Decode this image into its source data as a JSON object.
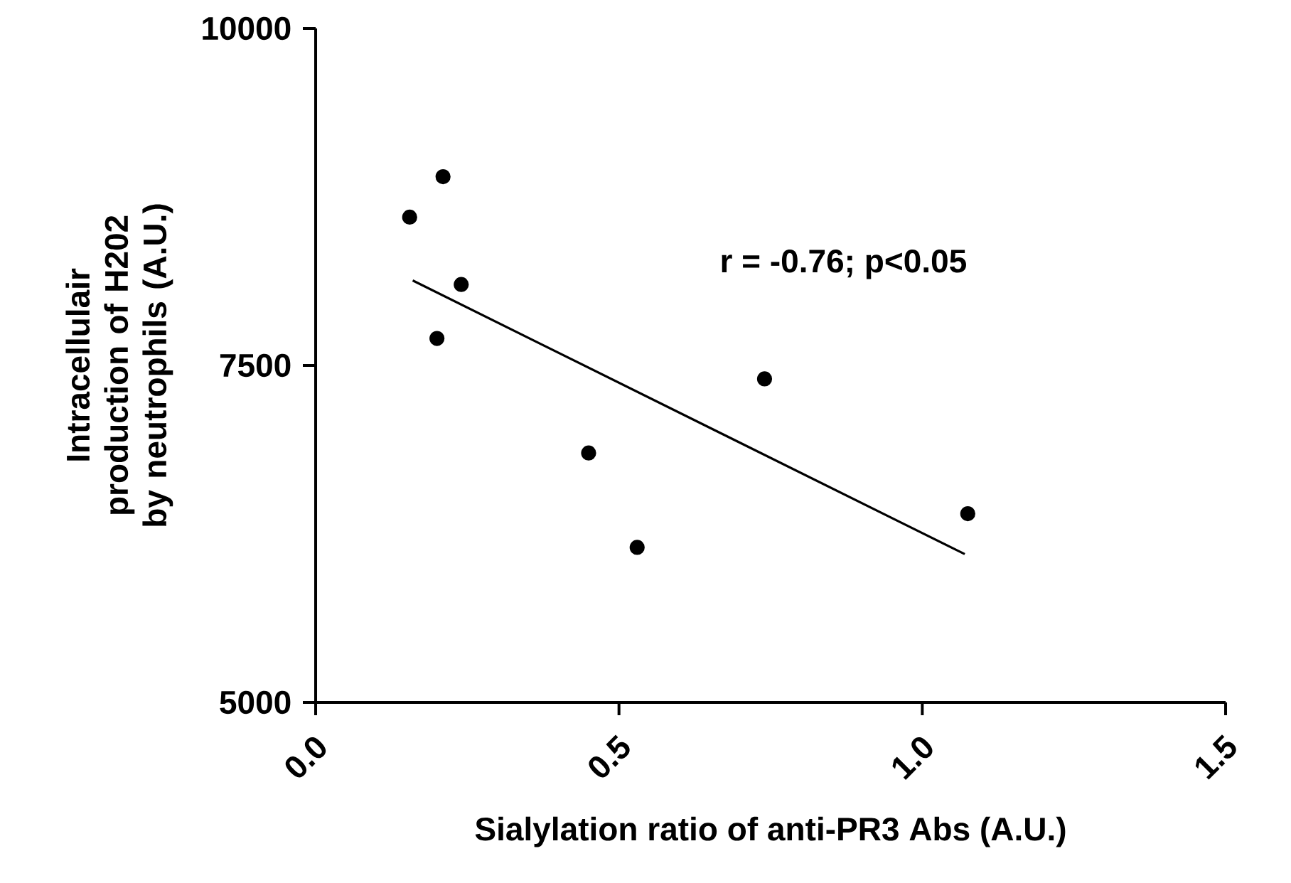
{
  "chart_data": {
    "type": "scatter",
    "xlabel": "Sialylation ratio of anti-PR3 Abs (A.U.)",
    "ylabel": "Intracellulair production of H202 by neutrophils (A.U.)",
    "annotations": [
      "r = -0.76; p<0.05"
    ],
    "xlim": [
      0,
      1.5
    ],
    "ylim": [
      5000,
      10000
    ],
    "xticks": [
      {
        "value": 0,
        "label": "0.0"
      },
      {
        "value": 0.5,
        "label": "0.5"
      },
      {
        "value": 1.0,
        "label": "1.0"
      },
      {
        "value": 1.5,
        "label": "1.5"
      }
    ],
    "yticks": [
      5000,
      7500,
      10000
    ],
    "grid": false,
    "series": [
      {
        "color": "#000000",
        "marker": "circle",
        "x": [
          0.155,
          0.21,
          0.24,
          0.2,
          0.45,
          0.53,
          0.74,
          1.075
        ],
        "values": [
          8600,
          8900,
          8100,
          7700,
          6850,
          6150,
          7400,
          6400
        ]
      },
      {
        "type": "line",
        "color": "#000000",
        "marker": "none",
        "line_style": "solid",
        "x": [
          0.16,
          1.07
        ],
        "values": [
          8130,
          6100
        ]
      }
    ]
  }
}
